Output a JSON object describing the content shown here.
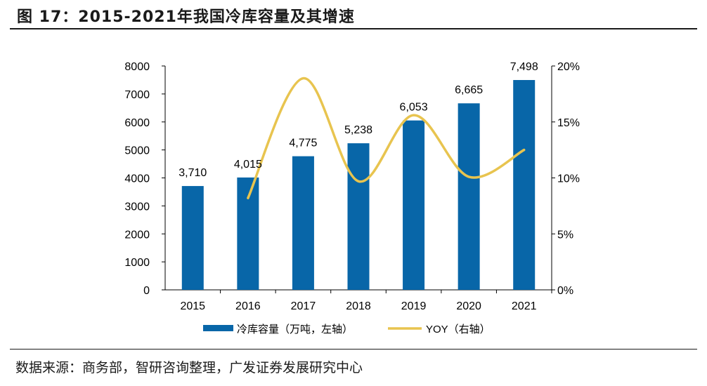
{
  "figure": {
    "title": "图 17：2015-2021年我国冷库容量及其增速",
    "source": "数据来源：商务部，智研咨询整理，广发证券发展研究中心"
  },
  "colors": {
    "bar": "#0866a8",
    "line": "#e8c44f",
    "axis": "#000000",
    "rule": "#1a1a1a"
  },
  "chart_data": {
    "type": "bar",
    "title": "2015-2021年我国冷库容量及其增速",
    "categories": [
      "2015",
      "2016",
      "2017",
      "2018",
      "2019",
      "2020",
      "2021"
    ],
    "series": [
      {
        "name": "冷库容量（万吨，左轴）",
        "type": "bar",
        "axis": "left",
        "values": [
          3710,
          4015,
          4775,
          5238,
          6053,
          6665,
          7498
        ],
        "labels": [
          "3,710",
          "4,015",
          "4,775",
          "5,238",
          "6,053",
          "6,665",
          "7,498"
        ]
      },
      {
        "name": "YOY（右轴）",
        "type": "line",
        "smooth": true,
        "axis": "right",
        "values": [
          null,
          8.2,
          18.9,
          9.7,
          15.6,
          10.1,
          12.5
        ]
      }
    ],
    "y_left": {
      "min": 0,
      "max": 8000,
      "step": 1000,
      "ticks": [
        "0",
        "1000",
        "2000",
        "3000",
        "4000",
        "5000",
        "6000",
        "7000",
        "8000"
      ]
    },
    "y_right": {
      "min": 0,
      "max": 20,
      "step": 5,
      "ticks": [
        "0%",
        "5%",
        "10%",
        "15%",
        "20%"
      ]
    },
    "legend": {
      "placement": "bottom"
    },
    "grid": false
  }
}
